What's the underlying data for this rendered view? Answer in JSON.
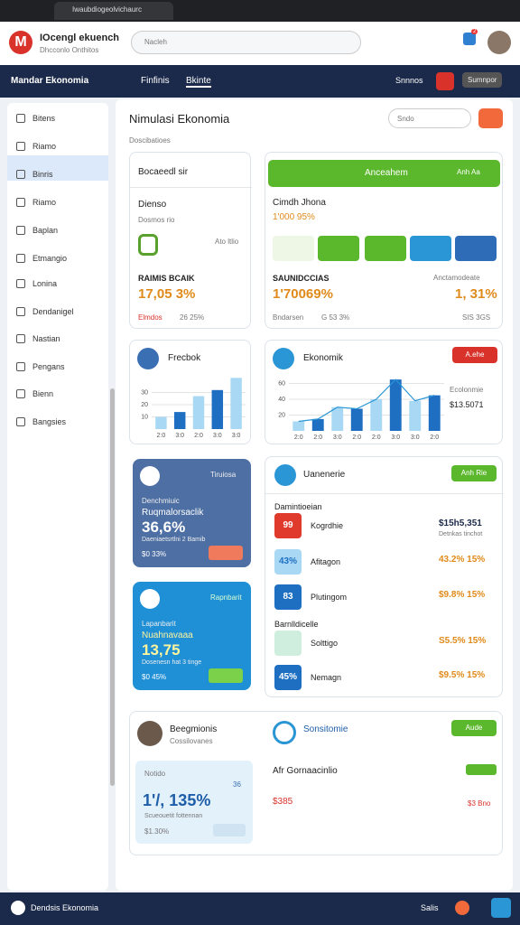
{
  "browser": {
    "tab_title": "Iwaubdiogeolvichaurc"
  },
  "header": {
    "title": "IOcengl ekuench",
    "subtitle": "Dhcconlo Onthitos",
    "search": "Nacleh",
    "notifications": "2"
  },
  "nav": {
    "menu": "Mandar Ekonomia",
    "links": [
      "Finfinis",
      "Bkinte"
    ],
    "right": [
      "Snnnos",
      "Sumnpor"
    ]
  },
  "sidebar": [
    "Bitens",
    "Riamo",
    "Binris",
    "Riamo",
    "Baplan",
    "Etmangio",
    "Lonina",
    "Dendanigel",
    "Nastian",
    "Pengans",
    "Bienn",
    "Bangsies"
  ],
  "main": {
    "title": "Nimulasi Ekonomia",
    "search": "Sndo",
    "section": "Doscibatioes"
  },
  "card1": {
    "header": "Bocaeedl sir",
    "name": "Dienso",
    "sub": "Dosmos rio",
    "note": "Ato ltlio",
    "label": "RAIMIS BCAIK",
    "value": "17,05 3%",
    "footer": [
      "Elmdos",
      "26 25%"
    ]
  },
  "card2": {
    "header": "Anceahem",
    "header_right": "Anh Aa",
    "name": "Cimdh Jhona",
    "value": "1'000 95%",
    "label_left": "SAUNIDCCIAS",
    "value_left": "1'70069%",
    "label_right": "Anctamodeate",
    "value_right": "1, 31%",
    "footer_left": [
      "Bndarsen",
      "G 53 3%"
    ],
    "footer_right": "SIS 3GS"
  },
  "card3": {
    "title": "Frecbok",
    "chart": {
      "type": "bar",
      "values": [
        10,
        14,
        27,
        32,
        42
      ],
      "ylim": [
        0,
        40
      ],
      "yticks": [
        10,
        20,
        30
      ],
      "categories": [
        "2:0",
        "3:0",
        "2:0",
        "3:0",
        "3:0"
      ]
    }
  },
  "card4": {
    "title": "Ekonomik",
    "button": "A.ehe",
    "value": "$13.5071",
    "note": "Ecolonmie",
    "chart": {
      "type": "bar",
      "values": [
        12,
        15,
        30,
        28,
        40,
        65,
        38,
        45
      ],
      "ylim": [
        0,
        80
      ],
      "yticks": [
        20,
        40,
        60
      ],
      "categories": [
        "2:0",
        "2:0",
        "3:0",
        "2:0",
        "2:0",
        "3:0",
        "3:0",
        "2:0"
      ]
    }
  },
  "card5": {
    "tag": "Tiruiosa",
    "name": "Denchmiuic",
    "label": "Ruqmalorsaclik",
    "value": "36,6%",
    "note": "Daeniaetsrtlni 2 Bamib",
    "footer": "$0 33%"
  },
  "card6": {
    "tag": "Rapnbarit",
    "name": "Lapanbarit",
    "label": "Nuahnavaaa",
    "value": "13,75",
    "note": "Dosenesn hat 3 tinge",
    "footer": "$0 45%"
  },
  "card7": {
    "title": "Uanenerie",
    "button": "Anh Rie",
    "section1": "Damintioeian",
    "section2": "Barnlldicelle",
    "rows": [
      {
        "badge": "99",
        "name": "Kogrdhie",
        "value": "$15h5,351",
        "sub": "Detnkas tinchot"
      },
      {
        "badge": "43%",
        "name": "Afitagon",
        "value": "43.2% 15%"
      },
      {
        "badge": "83",
        "name": "Plutingom",
        "value": "$9.8% 15%"
      },
      {
        "badge": "",
        "name": "Solttigo",
        "value": "S5.5% 15%"
      },
      {
        "badge": "45%",
        "name": "Nemagn",
        "value": "$9.5% 15%"
      }
    ]
  },
  "card8": {
    "name": "Beegmionis",
    "sub": "Cossilovanes",
    "box_label": "Notido",
    "box_tag": "36",
    "box_value": "1'/, 135%",
    "box_note": "Scueouetit fottennan",
    "box_footer": "$1.30%",
    "title": "Sonsitomie",
    "button": "Aude",
    "item": "Afr Gornaacinlio",
    "item_value": "$385",
    "item_tag": "$3 Bno"
  },
  "footer": {
    "title": "Dendsis Ekonomia",
    "right": "Salis"
  }
}
